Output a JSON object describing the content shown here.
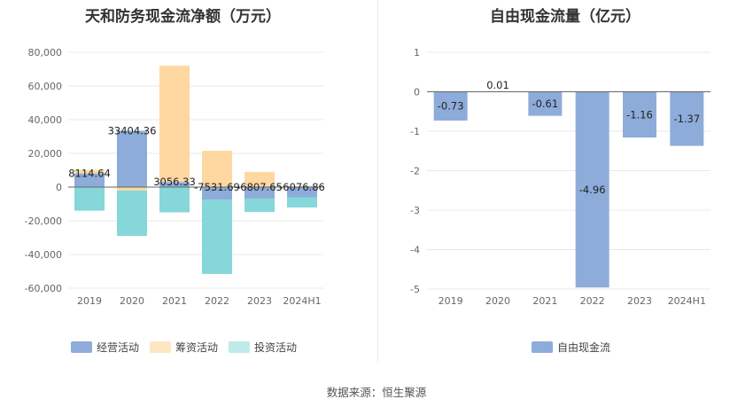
{
  "chart_data": [
    {
      "type": "bar",
      "stacked": true,
      "title": "天和防务现金流净额（万元）",
      "categories": [
        "2019",
        "2020",
        "2021",
        "2022",
        "2023",
        "2024H1"
      ],
      "series": [
        {
          "name": "经营活动",
          "color": "#8eacda",
          "values": [
            8114.64,
            33404.36,
            3056.33,
            -7531.69,
            -6807.65,
            -6076.86
          ]
        },
        {
          "name": "筹资活动",
          "color": "#fed8a0",
          "values": [
            2000,
            -2000,
            69000,
            21500,
            9000,
            500
          ]
        },
        {
          "name": "投资活动",
          "color": "#86d7d9",
          "values": [
            -14000,
            -27000,
            -15000,
            -44000,
            -8000,
            -6000
          ]
        }
      ],
      "data_labels": [
        "8114.64",
        "33404.36",
        "3056.33",
        "-7531.69",
        "-6807.65",
        "-6076.86"
      ],
      "y_ticks": [
        "80,000",
        "60,000",
        "40,000",
        "20,000",
        "0",
        "-20,000",
        "-40,000",
        "-60,000"
      ],
      "ylim": [
        -60000,
        80000
      ],
      "legend_position": "bottom"
    },
    {
      "type": "bar",
      "title": "自由现金流量（亿元）",
      "categories": [
        "2019",
        "2020",
        "2021",
        "2022",
        "2023",
        "2024H1"
      ],
      "series": [
        {
          "name": "自由现金流",
          "color": "#8eacda",
          "values": [
            -0.73,
            0.01,
            -0.61,
            -4.96,
            -1.16,
            -1.37
          ]
        }
      ],
      "data_labels": [
        "-0.73",
        "0.01",
        "-0.61",
        "-4.96",
        "-1.16",
        "-1.37"
      ],
      "y_ticks": [
        "1",
        "0",
        "-1",
        "-2",
        "-3",
        "-4",
        "-5"
      ],
      "ylim": [
        -5,
        1
      ],
      "legend_position": "bottom"
    }
  ],
  "source": "数据来源：恒生聚源"
}
